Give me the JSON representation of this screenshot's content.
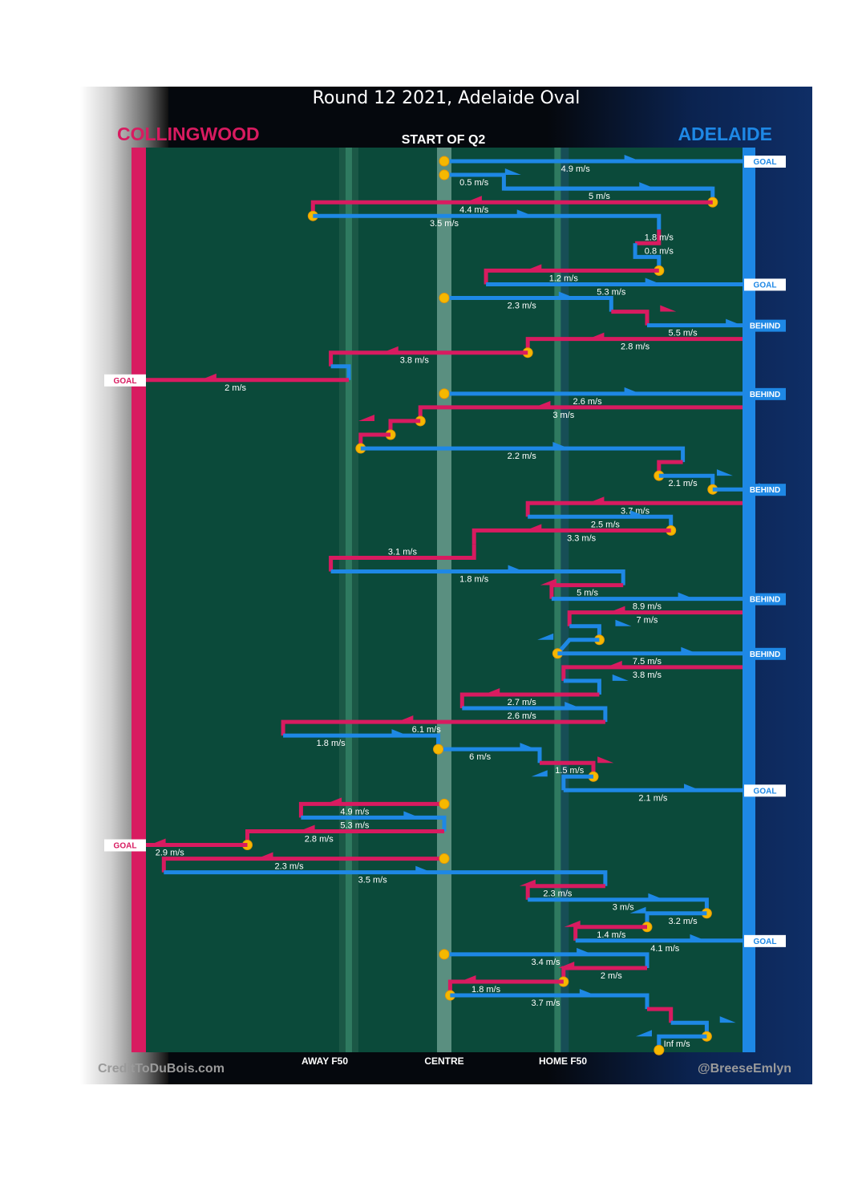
{
  "title": "Round 12 2021, Adelaide Oval",
  "teams": {
    "left": "COLLINGWOOD",
    "right": "ADELAIDE"
  },
  "subtitle": "START OF Q2",
  "x_labels": {
    "away_f50": "AWAY F50",
    "centre": "CENTRE",
    "home_f50": "HOME F50"
  },
  "credits": {
    "left": "CreditToDuBois.com",
    "right": "@BreeseEmlyn"
  },
  "colors": {
    "collingwood": "#d81b60",
    "adelaide": "#1e88e5",
    "field": "#0b4a3a",
    "dot": "#f5b800"
  },
  "chart_data": {
    "type": "chain",
    "title": "Round 12 2021, Adelaide Oval",
    "subtitle": "START OF Q2",
    "x_axis": {
      "min": 0,
      "max": 1,
      "away_f50": 0.34,
      "centre": 0.5,
      "home_f50": 0.69,
      "note": "0 = Collingwood goal, 1 = Adelaide goal"
    },
    "chains": [
      {
        "team": "ADL",
        "path": [
          [
            0.5,
            0
          ],
          [
            1,
            0
          ]
        ],
        "speed": "4.9 m/s",
        "outcome": "GOAL",
        "start_dot": true,
        "speed_at": 0.72
      },
      {
        "team": "ADL",
        "path": [
          [
            0.5,
            1
          ],
          [
            0.6,
            1
          ],
          [
            0.6,
            2
          ],
          [
            0.95,
            2
          ]
        ],
        "speed": "0.5 m/s",
        "start_dot": true,
        "speed_at": 0.55
      },
      {
        "team": "ADL",
        "path": [
          [
            0.6,
            2
          ],
          [
            0.95,
            2
          ],
          [
            0.95,
            3
          ]
        ],
        "speed": "5 m/s",
        "start_dot": false,
        "speed_at": 0.76,
        "end_dot": true
      },
      {
        "team": "COL",
        "path": [
          [
            0.95,
            3
          ],
          [
            0.28,
            3
          ],
          [
            0.28,
            4
          ]
        ],
        "speed": "4.4 m/s",
        "speed_at": 0.55,
        "end_dot": true
      },
      {
        "team": "ADL",
        "path": [
          [
            0.28,
            4
          ],
          [
            0.86,
            4
          ],
          [
            0.86,
            5
          ]
        ],
        "speed": "3.5 m/s",
        "speed_at": 0.5
      },
      {
        "team": "COL",
        "path": [
          [
            0.86,
            5
          ],
          [
            0.86,
            6
          ],
          [
            0.82,
            6
          ]
        ],
        "speed": "1.8 m/s",
        "speed_at": 0.86
      },
      {
        "team": "ADL",
        "path": [
          [
            0.82,
            6
          ],
          [
            0.82,
            7
          ],
          [
            0.86,
            7
          ],
          [
            0.86,
            8
          ]
        ],
        "speed": "0.8 m/s",
        "speed_at": 0.86,
        "end_dot": true
      },
      {
        "team": "COL",
        "path": [
          [
            0.86,
            8
          ],
          [
            0.57,
            8
          ],
          [
            0.57,
            9
          ]
        ],
        "speed": "1.2 m/s",
        "speed_at": 0.7
      },
      {
        "team": "ADL",
        "path": [
          [
            0.57,
            9
          ],
          [
            1,
            9
          ]
        ],
        "speed": "5.3 m/s",
        "outcome": "GOAL",
        "speed_at": 0.78
      },
      {
        "team": "ADL",
        "path": [
          [
            0.5,
            10
          ],
          [
            0.78,
            10
          ],
          [
            0.78,
            11
          ]
        ],
        "speed": "2.3 m/s",
        "start_dot": true,
        "speed_at": 0.63
      },
      {
        "team": "COL",
        "path": [
          [
            0.78,
            11
          ],
          [
            0.84,
            11
          ],
          [
            0.84,
            12
          ]
        ],
        "speed": "",
        "speed_at": 0.8
      },
      {
        "team": "ADL",
        "path": [
          [
            0.84,
            12
          ],
          [
            1,
            12
          ]
        ],
        "speed": "5.5 m/s",
        "outcome": "BEHIND",
        "speed_at": 0.9
      },
      {
        "team": "COL",
        "path": [
          [
            1,
            13
          ],
          [
            0.64,
            13
          ],
          [
            0.64,
            14
          ]
        ],
        "speed": "2.8 m/s",
        "speed_at": 0.82,
        "end_dot": true
      },
      {
        "team": "COL",
        "path": [
          [
            0.64,
            14
          ],
          [
            0.31,
            14
          ],
          [
            0.31,
            15
          ]
        ],
        "speed": "3.8 m/s",
        "speed_at": 0.45
      },
      {
        "team": "ADL",
        "path": [
          [
            0.31,
            15
          ],
          [
            0.34,
            15
          ],
          [
            0.34,
            16
          ]
        ],
        "speed": "",
        "speed_at": 0.33
      },
      {
        "team": "COL",
        "path": [
          [
            0.34,
            16
          ],
          [
            0,
            16
          ]
        ],
        "speed": "2 m/s",
        "outcome": "GOAL",
        "speed_at": 0.15
      },
      {
        "team": "ADL",
        "path": [
          [
            0.5,
            17
          ],
          [
            1,
            17
          ]
        ],
        "speed": "2.6 m/s",
        "outcome": "BEHIND",
        "start_dot": true,
        "speed_at": 0.74
      },
      {
        "team": "COL",
        "path": [
          [
            1,
            18
          ],
          [
            0.46,
            18
          ],
          [
            0.46,
            19
          ]
        ],
        "speed": "3 m/s",
        "speed_at": 0.7,
        "end_dot": true
      },
      {
        "team": "COL",
        "path": [
          [
            0.46,
            19
          ],
          [
            0.41,
            19
          ],
          [
            0.41,
            20
          ]
        ],
        "speed": "",
        "speed_at": 0.43,
        "end_dot": true
      },
      {
        "team": "COL",
        "path": [
          [
            0.41,
            20
          ],
          [
            0.36,
            20
          ],
          [
            0.36,
            21
          ]
        ],
        "speed": "",
        "speed_at": 0.38,
        "end_dot": true
      },
      {
        "team": "ADL",
        "path": [
          [
            0.36,
            21
          ],
          [
            0.9,
            21
          ],
          [
            0.9,
            22
          ]
        ],
        "speed": "2.2 m/s",
        "speed_at": 0.63
      },
      {
        "team": "COL",
        "path": [
          [
            0.9,
            22
          ],
          [
            0.86,
            22
          ],
          [
            0.86,
            23
          ]
        ],
        "speed": "",
        "speed_at": 0.88,
        "end_dot": true
      },
      {
        "team": "ADL",
        "path": [
          [
            0.86,
            23
          ],
          [
            0.95,
            23
          ],
          [
            0.95,
            24
          ]
        ],
        "speed": "2.1 m/s",
        "speed_at": 0.9,
        "end_dot": true
      },
      {
        "team": "ADL",
        "path": [
          [
            0.95,
            24
          ],
          [
            1,
            24
          ]
        ],
        "speed": "",
        "outcome": "BEHIND",
        "speed_at": 0.97
      },
      {
        "team": "COL",
        "path": [
          [
            1,
            25
          ],
          [
            0.64,
            25
          ],
          [
            0.64,
            26
          ]
        ],
        "speed": "3.7 m/s",
        "speed_at": 0.82
      },
      {
        "team": "ADL",
        "path": [
          [
            0.64,
            26
          ],
          [
            0.88,
            26
          ],
          [
            0.88,
            27
          ]
        ],
        "speed": "2.5 m/s",
        "speed_at": 0.77,
        "end_dot": true
      },
      {
        "team": "COL",
        "path": [
          [
            0.88,
            27
          ],
          [
            0.55,
            27
          ],
          [
            0.55,
            28
          ]
        ],
        "speed": "3.3 m/s",
        "speed_at": 0.73
      },
      {
        "team": "COL",
        "path": [
          [
            0.55,
            28
          ],
          [
            0.55,
            29
          ],
          [
            0.31,
            29
          ],
          [
            0.31,
            30
          ]
        ],
        "speed": "3.1 m/s",
        "speed_at": 0.43
      },
      {
        "team": "ADL",
        "path": [
          [
            0.31,
            30
          ],
          [
            0.8,
            30
          ],
          [
            0.8,
            31
          ]
        ],
        "speed": "1.8 m/s",
        "speed_at": 0.55
      },
      {
        "team": "COL",
        "path": [
          [
            0.8,
            31
          ],
          [
            0.68,
            31
          ],
          [
            0.68,
            32
          ]
        ],
        "speed": "5 m/s",
        "speed_at": 0.74
      },
      {
        "team": "ADL",
        "path": [
          [
            0.68,
            32
          ],
          [
            1,
            32
          ]
        ],
        "speed": "8.9 m/s",
        "outcome": "BEHIND",
        "speed_at": 0.84
      },
      {
        "team": "COL",
        "path": [
          [
            1,
            33
          ],
          [
            0.71,
            33
          ],
          [
            0.71,
            34
          ]
        ],
        "speed": "7 m/s",
        "speed_at": 0.84
      },
      {
        "team": "ADL",
        "path": [
          [
            0.71,
            34
          ],
          [
            0.76,
            34
          ],
          [
            0.76,
            35
          ]
        ],
        "speed": "",
        "speed_at": 0.74,
        "end_dot": true
      },
      {
        "team": "ADL",
        "path": [
          [
            0.76,
            35
          ],
          [
            0.71,
            35
          ],
          [
            0.69,
            36
          ]
        ],
        "speed": "",
        "speed_at": 0.72,
        "end_dot": true
      },
      {
        "team": "ADL",
        "path": [
          [
            0.69,
            36
          ],
          [
            1,
            36
          ]
        ],
        "speed": "7.5 m/s",
        "outcome": "BEHIND",
        "speed_at": 0.84
      },
      {
        "team": "COL",
        "path": [
          [
            1,
            37
          ],
          [
            0.7,
            37
          ],
          [
            0.7,
            38
          ]
        ],
        "speed": "3.8 m/s",
        "speed_at": 0.84
      },
      {
        "team": "ADL",
        "path": [
          [
            0.7,
            38
          ],
          [
            0.76,
            38
          ],
          [
            0.76,
            39
          ]
        ],
        "speed": "",
        "speed_at": 0.74
      },
      {
        "team": "COL",
        "path": [
          [
            0.76,
            39
          ],
          [
            0.53,
            39
          ],
          [
            0.53,
            40
          ]
        ],
        "speed": "2.7 m/s",
        "speed_at": 0.63
      },
      {
        "team": "ADL",
        "path": [
          [
            0.53,
            40
          ],
          [
            0.77,
            40
          ],
          [
            0.77,
            41
          ]
        ],
        "speed": "2.6 m/s",
        "speed_at": 0.63
      },
      {
        "team": "COL",
        "path": [
          [
            0.77,
            41
          ],
          [
            0.23,
            41
          ],
          [
            0.23,
            42
          ]
        ],
        "speed": "6.1 m/s",
        "speed_at": 0.47
      },
      {
        "team": "ADL",
        "path": [
          [
            0.23,
            42
          ],
          [
            0.49,
            42
          ],
          [
            0.49,
            43
          ]
        ],
        "speed": "1.8 m/s",
        "speed_at": 0.31
      },
      {
        "team": "ADL",
        "path": [
          [
            0.49,
            43
          ],
          [
            0.66,
            43
          ],
          [
            0.66,
            44
          ]
        ],
        "speed": "6 m/s",
        "speed_at": 0.56,
        "start_dot": true
      },
      {
        "team": "COL",
        "path": [
          [
            0.66,
            44
          ],
          [
            0.75,
            44
          ],
          [
            0.75,
            45
          ]
        ],
        "speed": "1.5 m/s",
        "speed_at": 0.71,
        "end_dot": true
      },
      {
        "team": "ADL",
        "path": [
          [
            0.75,
            45
          ],
          [
            0.7,
            45
          ],
          [
            0.7,
            46
          ]
        ],
        "speed": "",
        "speed_at": 0.72
      },
      {
        "team": "ADL",
        "path": [
          [
            0.7,
            46
          ],
          [
            1,
            46
          ]
        ],
        "speed": "2.1 m/s",
        "outcome": "GOAL",
        "speed_at": 0.85
      },
      {
        "team": "COL",
        "path": [
          [
            0.5,
            47
          ],
          [
            0.26,
            47
          ],
          [
            0.26,
            48
          ]
        ],
        "speed": "4.9 m/s",
        "speed_at": 0.35,
        "start_dot": true
      },
      {
        "team": "ADL",
        "path": [
          [
            0.26,
            48
          ],
          [
            0.5,
            48
          ],
          [
            0.5,
            49
          ]
        ],
        "speed": "5.3 m/s",
        "speed_at": 0.35
      },
      {
        "team": "COL",
        "path": [
          [
            0.5,
            49
          ],
          [
            0.17,
            49
          ],
          [
            0.17,
            50
          ]
        ],
        "speed": "2.8 m/s",
        "speed_at": 0.29,
        "end_dot": true
      },
      {
        "team": "COL",
        "path": [
          [
            0.17,
            50
          ],
          [
            0,
            50
          ]
        ],
        "speed": "2.9 m/s",
        "outcome": "GOAL",
        "speed_at": 0.04
      },
      {
        "team": "COL",
        "path": [
          [
            0.5,
            51
          ],
          [
            0.03,
            51
          ],
          [
            0.03,
            52
          ]
        ],
        "speed": "2.3 m/s",
        "speed_at": 0.24,
        "start_dot": true
      },
      {
        "team": "ADL",
        "path": [
          [
            0.03,
            52
          ],
          [
            0.77,
            52
          ],
          [
            0.77,
            53
          ]
        ],
        "speed": "3.5 m/s",
        "speed_at": 0.38
      },
      {
        "team": "COL",
        "path": [
          [
            0.77,
            53
          ],
          [
            0.64,
            53
          ],
          [
            0.64,
            54
          ]
        ],
        "speed": "2.3 m/s",
        "speed_at": 0.69
      },
      {
        "team": "ADL",
        "path": [
          [
            0.64,
            54
          ],
          [
            0.94,
            54
          ],
          [
            0.94,
            55
          ]
        ],
        "speed": "3 m/s",
        "speed_at": 0.8,
        "end_dot": true
      },
      {
        "team": "ADL",
        "path": [
          [
            0.94,
            55
          ],
          [
            0.84,
            55
          ],
          [
            0.84,
            56
          ]
        ],
        "speed": "3.2 m/s",
        "speed_at": 0.9,
        "end_dot": true
      },
      {
        "team": "COL",
        "path": [
          [
            0.84,
            56
          ],
          [
            0.72,
            56
          ],
          [
            0.72,
            57
          ]
        ],
        "speed": "1.4 m/s",
        "speed_at": 0.78
      },
      {
        "team": "ADL",
        "path": [
          [
            0.72,
            57
          ],
          [
            1,
            57
          ]
        ],
        "speed": "4.1 m/s",
        "outcome": "GOAL",
        "speed_at": 0.87
      },
      {
        "team": "ADL",
        "path": [
          [
            0.5,
            58
          ],
          [
            0.84,
            58
          ],
          [
            0.84,
            59
          ]
        ],
        "speed": "3.4 m/s",
        "speed_at": 0.67,
        "start_dot": true
      },
      {
        "team": "COL",
        "path": [
          [
            0.84,
            59
          ],
          [
            0.7,
            59
          ],
          [
            0.7,
            60
          ]
        ],
        "speed": "2 m/s",
        "speed_at": 0.78,
        "end_dot": true
      },
      {
        "team": "COL",
        "path": [
          [
            0.7,
            60
          ],
          [
            0.51,
            60
          ],
          [
            0.51,
            61
          ]
        ],
        "speed": "1.8 m/s",
        "speed_at": 0.57,
        "end_dot": true
      },
      {
        "team": "ADL",
        "path": [
          [
            0.51,
            61
          ],
          [
            0.84,
            61
          ],
          [
            0.84,
            62
          ]
        ],
        "speed": "3.7 m/s",
        "speed_at": 0.67
      },
      {
        "team": "COL",
        "path": [
          [
            0.84,
            62
          ],
          [
            0.88,
            62
          ],
          [
            0.88,
            63
          ]
        ],
        "speed": "",
        "speed_at": 0.86
      },
      {
        "team": "ADL",
        "path": [
          [
            0.88,
            63
          ],
          [
            0.94,
            63
          ],
          [
            0.94,
            64
          ]
        ],
        "speed": "",
        "speed_at": 0.91,
        "end_dot": true
      },
      {
        "team": "ADL",
        "path": [
          [
            0.94,
            64
          ],
          [
            0.86,
            64
          ],
          [
            0.86,
            65
          ]
        ],
        "speed": "Inf m/s",
        "speed_at": 0.89,
        "end_dot": true
      }
    ]
  }
}
